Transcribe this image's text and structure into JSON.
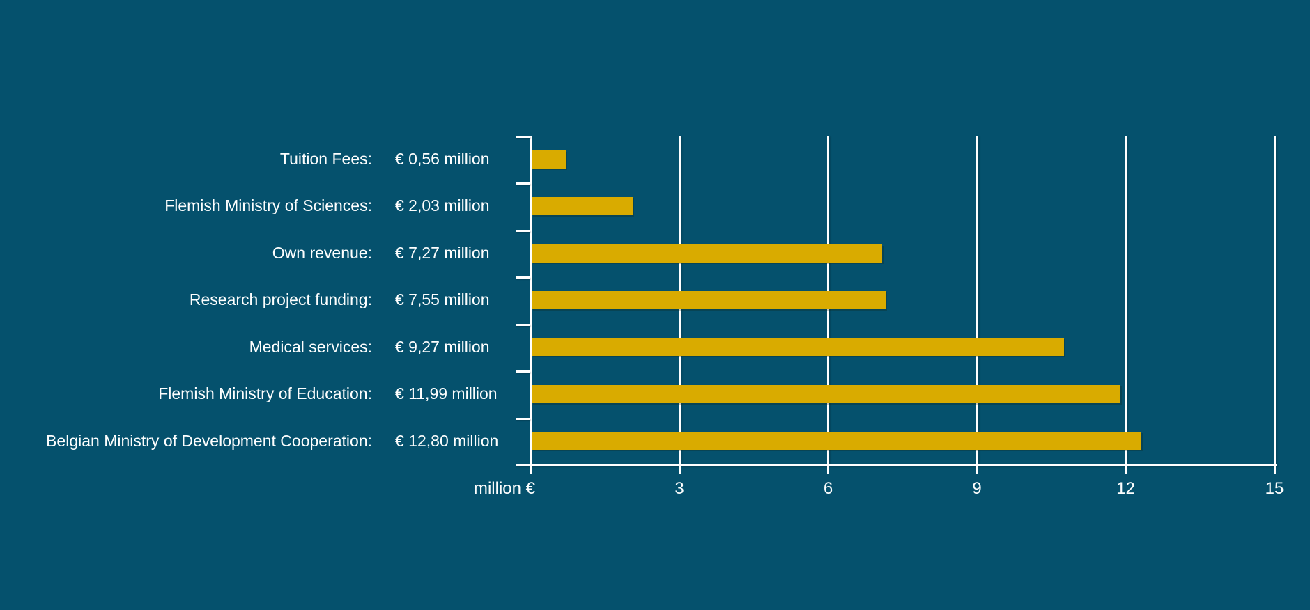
{
  "chart_data": {
    "type": "bar",
    "orientation": "horizontal",
    "title": "",
    "categories": [
      "Tuition Fees:",
      "Flemish Ministry of Sciences:",
      "Own revenue:",
      "Research project funding:",
      "Medical services:",
      "Flemish Ministry of Education:",
      "Belgian Ministry of Development Cooperation:"
    ],
    "value_labels": [
      "€ 0,56 million",
      "€ 2,03 million",
      "€ 7,27 million",
      "€ 7,55 million",
      "€ 9,27 million",
      "€ 11,99 million",
      "€ 12,80 million"
    ],
    "values": [
      0.56,
      2.03,
      7.27,
      7.55,
      9.27,
      11.99,
      12.8
    ],
    "bar_rendered_values": [
      0.69,
      2.04,
      7.07,
      7.14,
      10.73,
      11.88,
      12.3
    ],
    "xlabel": "million €",
    "x_ticks": [
      "3",
      "6",
      "9",
      "12",
      "15"
    ],
    "x_tick_values": [
      3,
      6,
      9,
      12,
      15
    ],
    "xlim": [
      0,
      15
    ],
    "grid": true,
    "legend_position": "none",
    "colors": {
      "background": "#05516D",
      "bar": "#D9AB00",
      "axis": "#FFFFFF",
      "text": "#FDFEFE"
    }
  }
}
